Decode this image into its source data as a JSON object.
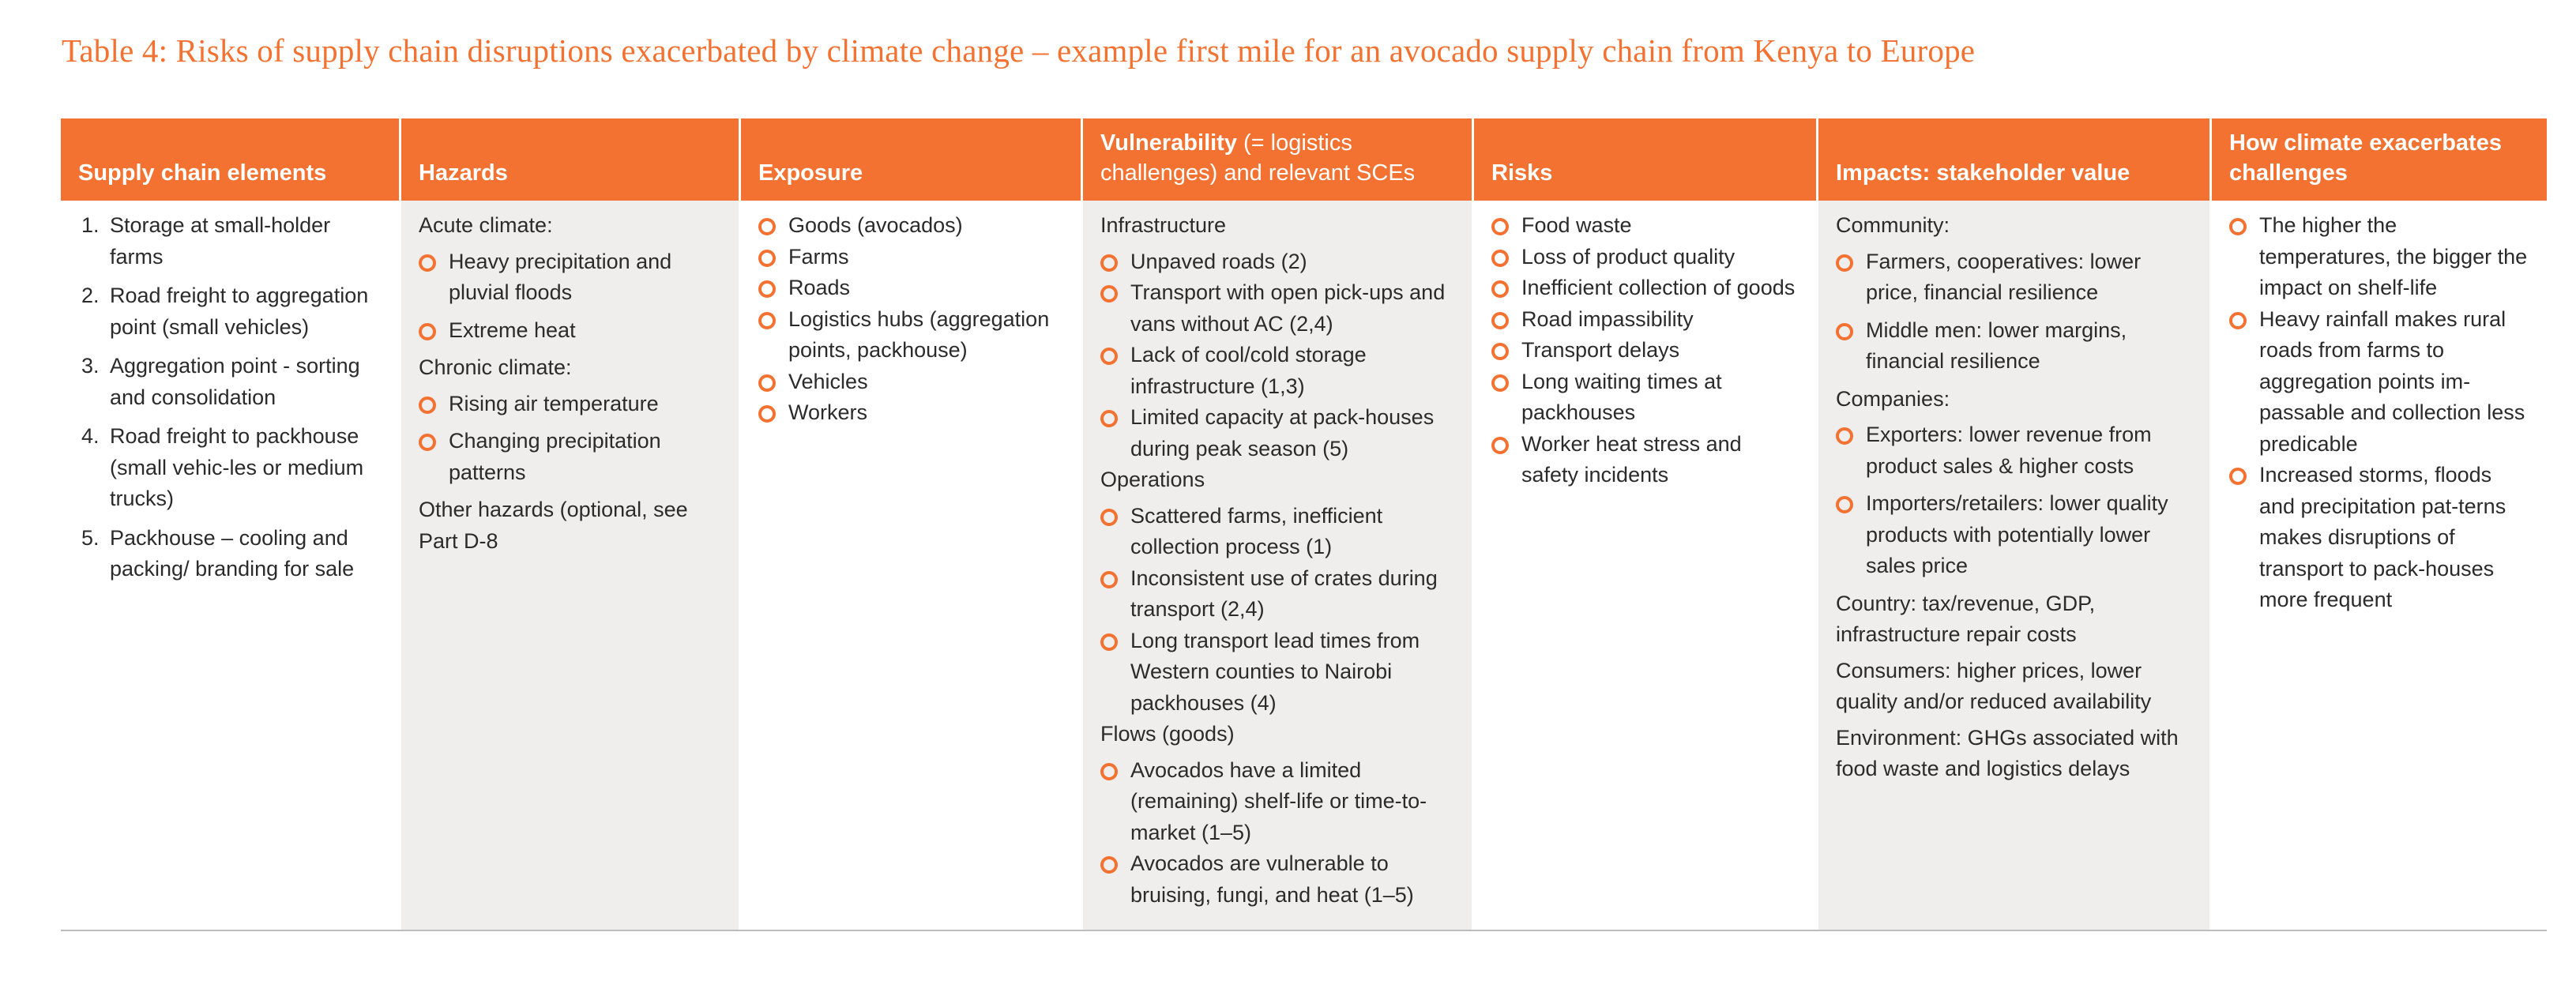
{
  "title": "Table 4: Risks of supply chain disruptions exacerbated by climate change – example first mile for an avocado supply chain from Kenya to Europe",
  "colors": {
    "accent": "#f37231",
    "shade": "#efeeec",
    "text": "#2b2b2b"
  },
  "columns": [
    {
      "header": "Supply chain elements",
      "shaded": false,
      "style": "numbered",
      "blocks": [
        {
          "type": "numbered",
          "items": [
            {
              "num": "1.",
              "text": "Storage at small-holder farms"
            },
            {
              "num": "2.",
              "text": "Road freight to aggregation point (small vehicles)"
            },
            {
              "num": "3.",
              "text": "Aggregation point - sorting and consolidation"
            },
            {
              "num": "4.",
              "text": "Road freight to packhouse (small vehic-les or medium trucks)"
            },
            {
              "num": "5.",
              "text": "Packhouse – cooling and packing/ branding for sale"
            }
          ]
        }
      ]
    },
    {
      "header": "Hazards",
      "shaded": true,
      "style": "gap",
      "blocks": [
        {
          "type": "text",
          "text": "Acute climate:"
        },
        {
          "type": "bullets",
          "items": [
            "Heavy precipitation and pluvial floods",
            "Extreme heat"
          ]
        },
        {
          "type": "text",
          "text": "Chronic climate:"
        },
        {
          "type": "bullets",
          "items": [
            "Rising air temperature",
            "Changing precipitation patterns"
          ]
        },
        {
          "type": "text",
          "text": "Other hazards (optional, see Part D-8"
        }
      ]
    },
    {
      "header": "Exposure",
      "shaded": false,
      "style": "",
      "blocks": [
        {
          "type": "bullets",
          "items": [
            "Goods (avocados)",
            "Farms",
            "Roads",
            "Logistics hubs (aggregation points, packhouse)",
            "Vehicles",
            "Workers"
          ]
        }
      ]
    },
    {
      "header": "Vulnerability",
      "header_rest": " (= logistics challenges) and relevant SCEs",
      "shaded": true,
      "style": "",
      "blocks": [
        {
          "type": "text",
          "text": "Infrastructure"
        },
        {
          "type": "bullets",
          "items": [
            "Unpaved roads (2)",
            "Transport with open pick-ups and vans without AC (2,4)",
            "Lack of cool/cold storage infrastructure (1,3)",
            "Limited capacity at pack-houses during peak season (5)"
          ]
        },
        {
          "type": "text",
          "text": "Operations"
        },
        {
          "type": "bullets",
          "items": [
            "Scattered farms, inefficient collection process (1)",
            "Inconsistent use of crates during transport (2,4)",
            "Long transport lead times from Western counties to Nairobi packhouses (4)"
          ]
        },
        {
          "type": "text",
          "text": "Flows (goods)"
        },
        {
          "type": "bullets",
          "items": [
            "Avocados have a limited (remaining) shelf-life or time-to-market (1–5)",
            "Avocados are vulnerable to bruising, fungi, and heat (1–5)"
          ]
        }
      ]
    },
    {
      "header": "Risks",
      "shaded": false,
      "style": "",
      "blocks": [
        {
          "type": "bullets",
          "items": [
            "Food waste",
            "Loss of product quality",
            "Inefficient collection of goods",
            "Road impassibility",
            "Transport delays",
            "Long waiting times at packhouses",
            "Worker heat stress and safety incidents"
          ]
        }
      ]
    },
    {
      "header": "Impacts: stakeholder value",
      "shaded": true,
      "style": "gap",
      "blocks": [
        {
          "type": "text",
          "text": "Community:"
        },
        {
          "type": "bullets",
          "items": [
            "Farmers, cooperatives: lower price, financial resilience",
            "Middle men: lower margins, financial resilience"
          ]
        },
        {
          "type": "text",
          "text": "Companies:"
        },
        {
          "type": "bullets",
          "items": [
            "Exporters: lower revenue from product sales & higher costs",
            "Importers/retailers: lower quality products with potentially lower sales price"
          ]
        },
        {
          "type": "text",
          "text": "Country: tax/revenue, GDP, infrastructure repair costs"
        },
        {
          "type": "text",
          "text": "Consumers: higher prices, lower quality and/or reduced availability"
        },
        {
          "type": "text",
          "text": "Environment: GHGs associated with food waste and logistics delays"
        }
      ]
    },
    {
      "header": "How climate exacerbates challenges",
      "shaded": false,
      "style": "",
      "blocks": [
        {
          "type": "bullets",
          "items": [
            "The higher the temperatures, the bigger the impact on shelf-life",
            "Heavy rainfall makes rural roads from farms to aggregation points im-passable and collection less predicable",
            "Increased storms, floods and precipitation pat-terns makes disruptions of transport to pack-houses more frequent"
          ]
        }
      ]
    }
  ]
}
